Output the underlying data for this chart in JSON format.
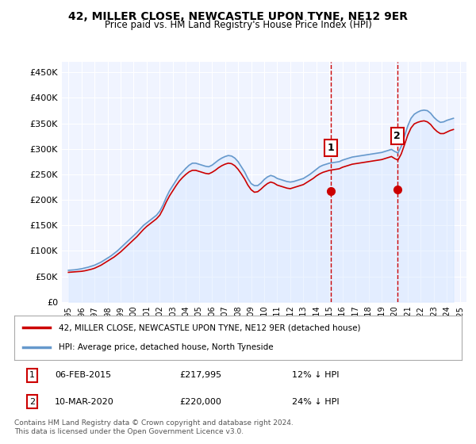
{
  "title": "42, MILLER CLOSE, NEWCASTLE UPON TYNE, NE12 9ER",
  "subtitle": "Price paid vs. HM Land Registry's House Price Index (HPI)",
  "ylabel_format": "£{0}K",
  "yticks": [
    0,
    50000,
    100000,
    150000,
    200000,
    250000,
    300000,
    350000,
    400000,
    450000
  ],
  "ylim": [
    0,
    470000
  ],
  "background_color": "#ffffff",
  "plot_bg_color": "#f0f4ff",
  "grid_color": "#ffffff",
  "hpi_color": "#6699cc",
  "hpi_fill_color": "#cce0ff",
  "price_color": "#cc0000",
  "vline_color": "#cc0000",
  "vline_style": "--",
  "sale1_year": 2015.1,
  "sale1_price": 217995,
  "sale1_label": "1",
  "sale2_year": 2020.2,
  "sale2_price": 220000,
  "sale2_label": "2",
  "legend_label1": "42, MILLER CLOSE, NEWCASTLE UPON TYNE, NE12 9ER (detached house)",
  "legend_label2": "HPI: Average price, detached house, North Tyneside",
  "table_row1": "06-FEB-2015    £217,995    12% ↓ HPI",
  "table_row2": "10-MAR-2020    £220,000    24% ↓ HPI",
  "footer": "Contains HM Land Registry data © Crown copyright and database right 2024.\nThis data is licensed under the Open Government Licence v3.0.",
  "hpi_data": {
    "years": [
      1995.0,
      1995.25,
      1995.5,
      1995.75,
      1996.0,
      1996.25,
      1996.5,
      1996.75,
      1997.0,
      1997.25,
      1997.5,
      1997.75,
      1998.0,
      1998.25,
      1998.5,
      1998.75,
      1999.0,
      1999.25,
      1999.5,
      1999.75,
      2000.0,
      2000.25,
      2000.5,
      2000.75,
      2001.0,
      2001.25,
      2001.5,
      2001.75,
      2002.0,
      2002.25,
      2002.5,
      2002.75,
      2003.0,
      2003.25,
      2003.5,
      2003.75,
      2004.0,
      2004.25,
      2004.5,
      2004.75,
      2005.0,
      2005.25,
      2005.5,
      2005.75,
      2006.0,
      2006.25,
      2006.5,
      2006.75,
      2007.0,
      2007.25,
      2007.5,
      2007.75,
      2008.0,
      2008.25,
      2008.5,
      2008.75,
      2009.0,
      2009.25,
      2009.5,
      2009.75,
      2010.0,
      2010.25,
      2010.5,
      2010.75,
      2011.0,
      2011.25,
      2011.5,
      2011.75,
      2012.0,
      2012.25,
      2012.5,
      2012.75,
      2013.0,
      2013.25,
      2013.5,
      2013.75,
      2014.0,
      2014.25,
      2014.5,
      2014.75,
      2015.0,
      2015.25,
      2015.5,
      2015.75,
      2016.0,
      2016.25,
      2016.5,
      2016.75,
      2017.0,
      2017.25,
      2017.5,
      2017.75,
      2018.0,
      2018.25,
      2018.5,
      2018.75,
      2019.0,
      2019.25,
      2019.5,
      2019.75,
      2020.0,
      2020.25,
      2020.5,
      2020.75,
      2021.0,
      2021.25,
      2021.5,
      2021.75,
      2022.0,
      2022.25,
      2022.5,
      2022.75,
      2023.0,
      2023.25,
      2023.5,
      2023.75,
      2024.0,
      2024.25,
      2024.5
    ],
    "values": [
      62000,
      62500,
      63000,
      64000,
      65000,
      66500,
      68000,
      70000,
      72000,
      75000,
      78000,
      82000,
      86000,
      90000,
      95000,
      100000,
      106000,
      112000,
      118000,
      124000,
      130000,
      136000,
      143000,
      150000,
      155000,
      160000,
      165000,
      170000,
      178000,
      190000,
      205000,
      218000,
      228000,
      238000,
      248000,
      255000,
      262000,
      268000,
      272000,
      272000,
      270000,
      268000,
      266000,
      265000,
      268000,
      273000,
      278000,
      282000,
      285000,
      287000,
      286000,
      282000,
      275000,
      265000,
      255000,
      242000,
      232000,
      228000,
      228000,
      233000,
      240000,
      245000,
      248000,
      246000,
      242000,
      240000,
      238000,
      236000,
      235000,
      236000,
      238000,
      240000,
      242000,
      246000,
      250000,
      255000,
      260000,
      265000,
      268000,
      270000,
      272000,
      273000,
      274000,
      275000,
      278000,
      280000,
      282000,
      284000,
      285000,
      286000,
      287000,
      288000,
      289000,
      290000,
      291000,
      292000,
      293000,
      295000,
      297000,
      299000,
      295000,
      292000,
      305000,
      325000,
      345000,
      360000,
      368000,
      372000,
      375000,
      376000,
      375000,
      370000,
      362000,
      356000,
      352000,
      353000,
      356000,
      358000,
      360000
    ]
  },
  "price_data": {
    "years": [
      1995.0,
      1995.25,
      1995.5,
      1995.75,
      1996.0,
      1996.25,
      1996.5,
      1996.75,
      1997.0,
      1997.25,
      1997.5,
      1997.75,
      1998.0,
      1998.25,
      1998.5,
      1998.75,
      1999.0,
      1999.25,
      1999.5,
      1999.75,
      2000.0,
      2000.25,
      2000.5,
      2000.75,
      2001.0,
      2001.25,
      2001.5,
      2001.75,
      2002.0,
      2002.25,
      2002.5,
      2002.75,
      2003.0,
      2003.25,
      2003.5,
      2003.75,
      2004.0,
      2004.25,
      2004.5,
      2004.75,
      2005.0,
      2005.25,
      2005.5,
      2005.75,
      2006.0,
      2006.25,
      2006.5,
      2006.75,
      2007.0,
      2007.25,
      2007.5,
      2007.75,
      2008.0,
      2008.25,
      2008.5,
      2008.75,
      2009.0,
      2009.25,
      2009.5,
      2009.75,
      2010.0,
      2010.25,
      2010.5,
      2010.75,
      2011.0,
      2011.25,
      2011.5,
      2011.75,
      2012.0,
      2012.25,
      2012.5,
      2012.75,
      2013.0,
      2013.25,
      2013.5,
      2013.75,
      2014.0,
      2014.25,
      2014.5,
      2014.75,
      2015.0,
      2015.25,
      2015.5,
      2015.75,
      2016.0,
      2016.25,
      2016.5,
      2016.75,
      2017.0,
      2017.25,
      2017.5,
      2017.75,
      2018.0,
      2018.25,
      2018.5,
      2018.75,
      2019.0,
      2019.25,
      2019.5,
      2019.75,
      2020.0,
      2020.25,
      2020.5,
      2020.75,
      2021.0,
      2021.25,
      2021.5,
      2021.75,
      2022.0,
      2022.25,
      2022.5,
      2022.75,
      2023.0,
      2023.25,
      2023.5,
      2023.75,
      2024.0,
      2024.25,
      2024.5
    ],
    "values": [
      58000,
      58500,
      59000,
      59500,
      60000,
      61000,
      62500,
      64000,
      66000,
      69000,
      72000,
      76000,
      80000,
      84000,
      88000,
      93000,
      98000,
      104000,
      110000,
      116000,
      122000,
      128000,
      135000,
      142000,
      148000,
      153000,
      158000,
      163000,
      170000,
      182000,
      196000,
      208000,
      218000,
      228000,
      237000,
      244000,
      250000,
      255000,
      258000,
      258000,
      256000,
      254000,
      252000,
      251000,
      254000,
      258000,
      263000,
      267000,
      270000,
      272000,
      271000,
      267000,
      260000,
      251000,
      241000,
      229000,
      220000,
      215000,
      216000,
      221000,
      227000,
      232000,
      235000,
      233000,
      229000,
      227000,
      225000,
      223000,
      222000,
      224000,
      226000,
      228000,
      230000,
      234000,
      238000,
      242000,
      247000,
      251000,
      254000,
      256000,
      258000,
      259000,
      260000,
      261000,
      264000,
      266000,
      268000,
      270000,
      271000,
      272000,
      273000,
      274000,
      275000,
      276000,
      277000,
      278000,
      279000,
      281000,
      283000,
      285000,
      281000,
      278000,
      290000,
      308000,
      327000,
      341000,
      349000,
      352000,
      354000,
      355000,
      353000,
      348000,
      340000,
      334000,
      330000,
      330000,
      333000,
      336000,
      338000
    ]
  }
}
